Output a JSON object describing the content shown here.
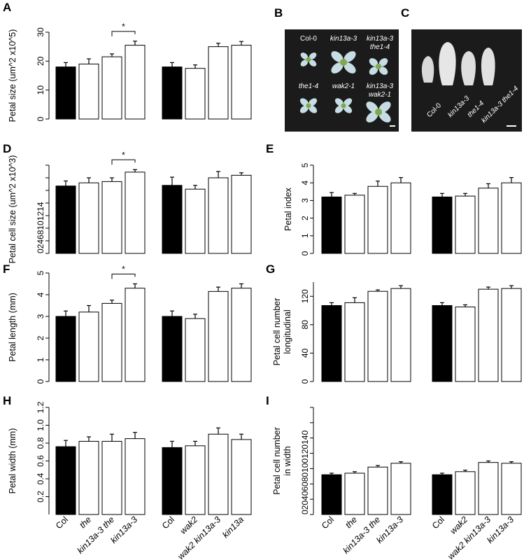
{
  "panels": {
    "A": "A",
    "B": "B",
    "C": "C",
    "D": "D",
    "E": "E",
    "F": "F",
    "G": "G",
    "H": "H",
    "I": "I"
  },
  "photo_b": {
    "labels": [
      {
        "text": "Col-0",
        "italic": false
      },
      {
        "text": "kin13a-3",
        "italic": true
      },
      {
        "text": "kin13a-3",
        "italic": true
      },
      {
        "text": "the1-4",
        "italic": true
      },
      {
        "text": "the1-4",
        "italic": true
      },
      {
        "text": "wak2-1",
        "italic": true
      },
      {
        "text": "kin13a-3",
        "italic": true
      },
      {
        "text": "wak2-1",
        "italic": true
      }
    ]
  },
  "photo_c": {
    "labels": [
      "Col-0",
      "kin13a-3",
      "the1-4",
      "kin13a-3 the1-4"
    ]
  },
  "chart_data": [
    {
      "panel": "A",
      "type": "bar",
      "ylabel": "Petal size (um^2 x10^5)",
      "ylim": [
        0,
        30
      ],
      "yticks": [
        "0",
        "10",
        "20",
        "30"
      ],
      "groups": [
        {
          "values": [
            18,
            19,
            21.5,
            25.5
          ],
          "errors": [
            1.5,
            1.8,
            1,
            1.4
          ],
          "sig": "*",
          "sig_between": [
            2,
            3
          ]
        },
        {
          "values": [
            18,
            17.5,
            25,
            25.5
          ],
          "errors": [
            1.5,
            1.2,
            1.2,
            1.3
          ]
        }
      ]
    },
    {
      "panel": "D",
      "type": "bar",
      "ylabel": "Petal cell size (um^2 x10^3)",
      "ylim": [
        0,
        14
      ],
      "yticks": [
        "0",
        "2",
        "4",
        "6",
        "8",
        "10",
        "12",
        "14"
      ],
      "ytick_style": "compressed",
      "groups": [
        {
          "values": [
            10.7,
            11.2,
            11.4,
            12.9
          ],
          "errors": [
            0.8,
            0.8,
            0.6,
            0.4
          ],
          "sig": "*",
          "sig_between": [
            2,
            3
          ]
        },
        {
          "values": [
            10.8,
            10.2,
            12,
            12.4
          ],
          "errors": [
            1.3,
            0.6,
            1.0,
            0.4
          ]
        }
      ]
    },
    {
      "panel": "E",
      "type": "bar",
      "ylabel": "Petal index",
      "ylim": [
        0,
        5
      ],
      "yticks": [
        "0",
        "1",
        "2",
        "3",
        "4",
        "5"
      ],
      "groups": [
        {
          "values": [
            3.2,
            3.3,
            3.8,
            4.0
          ],
          "errors": [
            0.25,
            0.1,
            0.3,
            0.3
          ]
        },
        {
          "values": [
            3.2,
            3.25,
            3.7,
            4.0
          ],
          "errors": [
            0.2,
            0.15,
            0.25,
            0.3
          ]
        }
      ]
    },
    {
      "panel": "F",
      "type": "bar",
      "ylabel": "Petal length (mm)",
      "ylim": [
        0,
        5
      ],
      "yticks": [
        "0",
        "1",
        "2",
        "3",
        "4",
        "5"
      ],
      "groups": [
        {
          "values": [
            3.0,
            3.2,
            3.6,
            4.3
          ],
          "errors": [
            0.25,
            0.3,
            0.15,
            0.2
          ],
          "sig": "*",
          "sig_between": [
            2,
            3
          ]
        },
        {
          "values": [
            3.0,
            2.9,
            4.15,
            4.3
          ],
          "errors": [
            0.25,
            0.2,
            0.2,
            0.2
          ]
        }
      ]
    },
    {
      "panel": "G",
      "type": "bar",
      "ylabel": "Petal cell number",
      "ylabel2": "longitudinal",
      "ylim": [
        0,
        140
      ],
      "yticks": [
        "0",
        "20",
        "40",
        "60",
        "80",
        "100",
        "120"
      ],
      "ytick_values": [
        0,
        40,
        80,
        120
      ],
      "ytick_labels": [
        "0",
        "40",
        "80",
        "120"
      ],
      "groups": [
        {
          "values": [
            107,
            111,
            127,
            131
          ],
          "errors": [
            4,
            7,
            2,
            4
          ]
        },
        {
          "values": [
            107,
            105,
            130,
            131
          ],
          "errors": [
            4,
            3,
            3,
            4
          ]
        }
      ]
    },
    {
      "panel": "H",
      "type": "bar",
      "ylabel": "Petal width (mm)",
      "ylim": [
        0,
        1.2
      ],
      "yticks": [
        "0.2",
        "0.4",
        "0.6",
        "0.8",
        "1.0",
        "1.2"
      ],
      "groups": [
        {
          "values": [
            0.76,
            0.82,
            0.82,
            0.85
          ],
          "errors": [
            0.07,
            0.05,
            0.08,
            0.07
          ]
        },
        {
          "values": [
            0.75,
            0.77,
            0.9,
            0.84
          ],
          "errors": [
            0.07,
            0.05,
            0.07,
            0.06
          ]
        }
      ],
      "categories": [
        [
          "Col",
          "the",
          "kin13a-3 the",
          "kin13a-3"
        ],
        [
          "Col",
          "wak2",
          "wak2 kin13a-3",
          "kin13a"
        ]
      ],
      "italic": [
        [
          false,
          true,
          true,
          true
        ],
        [
          false,
          true,
          true,
          true
        ]
      ]
    },
    {
      "panel": "I",
      "type": "bar",
      "ylabel": "Petal cell number",
      "ylabel2": "in width",
      "ylim": [
        0,
        140
      ],
      "ytick_stack": "0 20 40 60 80 100 120 140",
      "groups": [
        {
          "values": [
            52,
            54,
            62,
            67
          ],
          "errors": [
            2,
            2,
            2,
            2
          ]
        },
        {
          "values": [
            52,
            56,
            68,
            67
          ],
          "errors": [
            2,
            2,
            2,
            2
          ]
        }
      ],
      "categories": [
        [
          "Col",
          "the",
          "kin13a-3 the",
          "kin13a-3"
        ],
        [
          "Col",
          "wak2",
          "wak2 kin13a-3",
          "kin13a-3"
        ]
      ],
      "italic": [
        [
          false,
          true,
          true,
          true
        ],
        [
          false,
          true,
          true,
          true
        ]
      ]
    }
  ]
}
